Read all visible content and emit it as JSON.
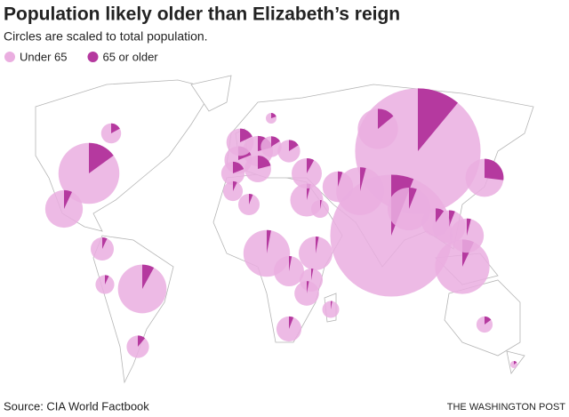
{
  "chart_data": {
    "type": "pie",
    "title": "Population likely older than Elizabeth’s reign",
    "subtitle": "Circles are scaled to total population.",
    "series": [
      {
        "name": "Under 65",
        "color": "#eaaee0"
      },
      {
        "name": "65 or older",
        "color": "#b5399f"
      }
    ],
    "population_unit": "millions",
    "pies": [
      {
        "population": 1380,
        "older_share": 11
      },
      {
        "population": 1300,
        "older_share": 6
      },
      {
        "population": 325,
        "older_share": 15
      },
      {
        "population": 260,
        "older_share": 7
      },
      {
        "population": 207,
        "older_share": 8
      },
      {
        "population": 200,
        "older_share": 4
      },
      {
        "population": 190,
        "older_share": 3
      },
      {
        "population": 160,
        "older_share": 6
      },
      {
        "population": 142,
        "older_share": 14
      },
      {
        "population": 127,
        "older_share": 27
      },
      {
        "population": 124,
        "older_share": 7
      },
      {
        "population": 102,
        "older_share": 4
      },
      {
        "population": 100,
        "older_share": 3
      },
      {
        "population": 95,
        "older_share": 4
      },
      {
        "population": 95,
        "older_share": 6
      },
      {
        "population": 81,
        "older_share": 21
      },
      {
        "population": 82,
        "older_share": 5
      },
      {
        "population": 80,
        "older_share": 8
      },
      {
        "population": 80,
        "older_share": 3
      },
      {
        "population": 68,
        "older_share": 10
      },
      {
        "population": 67,
        "older_share": 19
      },
      {
        "population": 65,
        "older_share": 18
      },
      {
        "population": 62,
        "older_share": 21
      },
      {
        "population": 55,
        "older_share": 6
      },
      {
        "population": 35,
        "older_share": 17
      },
      {
        "population": 44,
        "older_share": 11
      },
      {
        "population": 23,
        "older_share": 15
      },
      {
        "population": 10,
        "older_share": 20
      },
      {
        "population": 28,
        "older_share": 3
      },
      {
        "population": 47,
        "older_share": 7
      },
      {
        "population": 31,
        "older_share": 7
      },
      {
        "population": 47,
        "older_share": 3
      },
      {
        "population": 53,
        "older_share": 3
      },
      {
        "population": 48,
        "older_share": 19
      },
      {
        "population": 38,
        "older_share": 16
      },
      {
        "population": 44,
        "older_share": 16
      },
      {
        "population": 4.5,
        "older_share": 15
      },
      {
        "population": 25,
        "older_share": 3
      },
      {
        "population": 40,
        "older_share": 6
      },
      {
        "population": 34,
        "older_share": 7
      }
    ],
    "source": "Source: CIA World Factbook",
    "credit": "THE WASHINGTON POST"
  }
}
